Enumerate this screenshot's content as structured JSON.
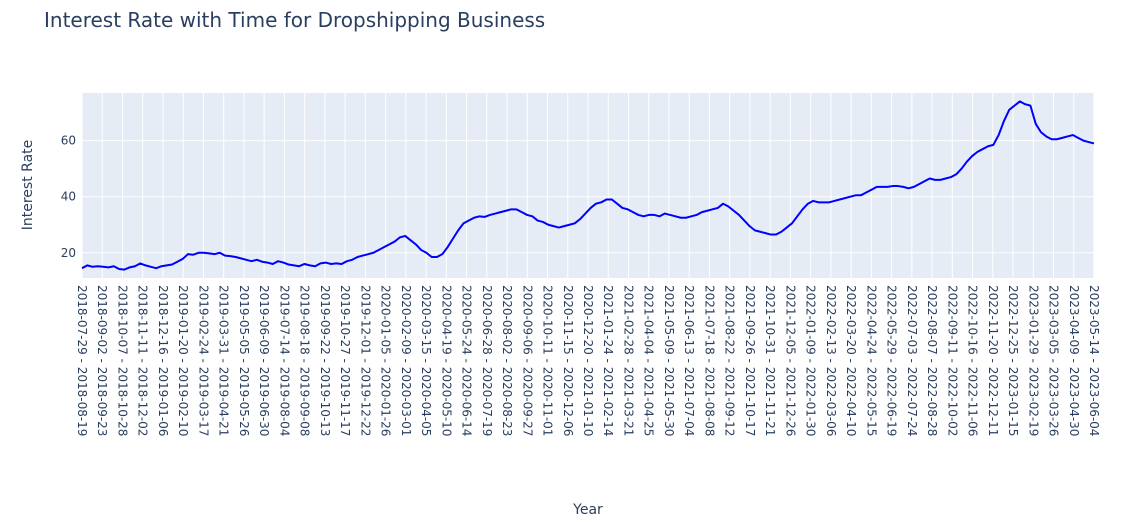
{
  "chart_data": {
    "type": "line",
    "title": "Interest Rate with Time for Dropshipping Business",
    "xlabel": "Year",
    "ylabel": "Interest Rate",
    "ylim": [
      11,
      77
    ],
    "yticks": [
      20,
      40,
      60
    ],
    "grid": true,
    "series": [
      {
        "color": "#0000ff",
        "values": [
          14.5,
          15.5,
          15.0,
          15.2,
          15.0,
          14.8,
          15.2,
          14.2,
          14.0,
          14.8,
          15.2,
          16.2,
          15.5,
          15.0,
          14.5,
          15.2,
          15.5,
          15.8,
          16.8,
          17.8,
          19.5,
          19.3,
          20.0,
          20.0,
          19.8,
          19.5,
          20.0,
          19.0,
          18.8,
          18.5,
          18.0,
          17.5,
          17.0,
          17.5,
          16.8,
          16.5,
          16.0,
          17.0,
          16.5,
          15.8,
          15.5,
          15.2,
          16.0,
          15.5,
          15.2,
          16.2,
          16.5,
          16.0,
          16.2,
          16.0,
          17.0,
          17.5,
          18.5,
          19.0,
          19.5,
          20.0,
          21.0,
          22.0,
          23.0,
          24.0,
          25.5,
          26.0,
          24.5,
          23.0,
          21.0,
          20.0,
          18.5,
          18.5,
          19.5,
          22.0,
          25.0,
          28.0,
          30.5,
          31.5,
          32.5,
          33.0,
          32.8,
          33.5,
          34.0,
          34.5,
          35.0,
          35.5,
          35.5,
          34.5,
          33.5,
          33.0,
          31.5,
          31.0,
          30.0,
          29.5,
          29.0,
          29.5,
          30.0,
          30.5,
          32.0,
          34.0,
          36.0,
          37.5,
          38.0,
          39.0,
          39.0,
          37.5,
          36.0,
          35.5,
          34.5,
          33.5,
          33.0,
          33.5,
          33.5,
          33.0,
          34.0,
          33.5,
          33.0,
          32.5,
          32.5,
          33.0,
          33.5,
          34.5,
          35.0,
          35.5,
          36.0,
          37.5,
          36.5,
          35.0,
          33.5,
          31.5,
          29.5,
          28.0,
          27.5,
          27.0,
          26.5,
          26.5,
          27.5,
          29.0,
          30.5,
          33.0,
          35.5,
          37.5,
          38.5,
          38.0,
          38.0,
          38.0,
          38.5,
          39.0,
          39.5,
          40.0,
          40.5,
          40.5,
          41.5,
          42.5,
          43.5,
          43.5,
          43.5,
          43.8,
          43.8,
          43.5,
          43.0,
          43.5,
          44.5,
          45.5,
          46.5,
          46.0,
          46.0,
          46.5,
          47.0,
          48.0,
          50.0,
          52.5,
          54.5,
          56.0,
          57.0,
          58.0,
          58.5,
          62.0,
          67.0,
          71.0,
          72.5,
          74.0,
          73.0,
          72.5,
          66.0,
          63.0,
          61.5,
          60.5,
          60.5,
          61.0,
          61.5,
          62.0,
          61.0,
          60.0,
          59.5,
          59.0
        ]
      }
    ],
    "x_tick_labels": [
      "2018-07-29 - 2018-08-19",
      "2018-09-02 - 2018-09-23",
      "2018-10-07 - 2018-10-28",
      "2018-11-11 - 2018-12-02",
      "2018-12-16 - 2019-01-06",
      "2019-01-20 - 2019-02-10",
      "2019-02-24 - 2019-03-17",
      "2019-03-31 - 2019-04-21",
      "2019-05-05 - 2019-05-26",
      "2019-06-09 - 2019-06-30",
      "2019-07-14 - 2019-08-04",
      "2019-08-18 - 2019-09-08",
      "2019-09-22 - 2019-10-13",
      "2019-10-27 - 2019-11-17",
      "2019-12-01 - 2019-12-22",
      "2020-01-05 - 2020-01-26",
      "2020-02-09 - 2020-03-01",
      "2020-03-15 - 2020-04-05",
      "2020-04-19 - 2020-05-10",
      "2020-05-24 - 2020-06-14",
      "2020-06-28 - 2020-07-19",
      "2020-08-02 - 2020-08-23",
      "2020-09-06 - 2020-09-27",
      "2020-10-11 - 2020-11-01",
      "2020-11-15 - 2020-12-06",
      "2020-12-20 - 2021-01-10",
      "2021-01-24 - 2021-02-14",
      "2021-02-28 - 2021-03-21",
      "2021-04-04 - 2021-04-25",
      "2021-05-09 - 2021-05-30",
      "2021-06-13 - 2021-07-04",
      "2021-07-18 - 2021-08-08",
      "2021-08-22 - 2021-09-12",
      "2021-09-26 - 2021-10-17",
      "2021-10-31 - 2021-11-21",
      "2021-12-05 - 2021-12-26",
      "2022-01-09 - 2022-01-30",
      "2022-02-13 - 2022-03-06",
      "2022-03-20 - 2022-04-10",
      "2022-04-24 - 2022-05-15",
      "2022-05-29 - 2022-06-19",
      "2022-07-03 - 2022-07-24",
      "2022-08-07 - 2022-08-28",
      "2022-09-11 - 2022-10-02",
      "2022-10-16 - 2022-11-06",
      "2022-11-20 - 2022-12-11",
      "2022-12-25 - 2023-01-15",
      "2023-01-29 - 2023-02-19",
      "2023-03-05 - 2023-03-26",
      "2023-04-09 - 2023-04-30",
      "2023-05-14 - 2023-06-04"
    ]
  }
}
